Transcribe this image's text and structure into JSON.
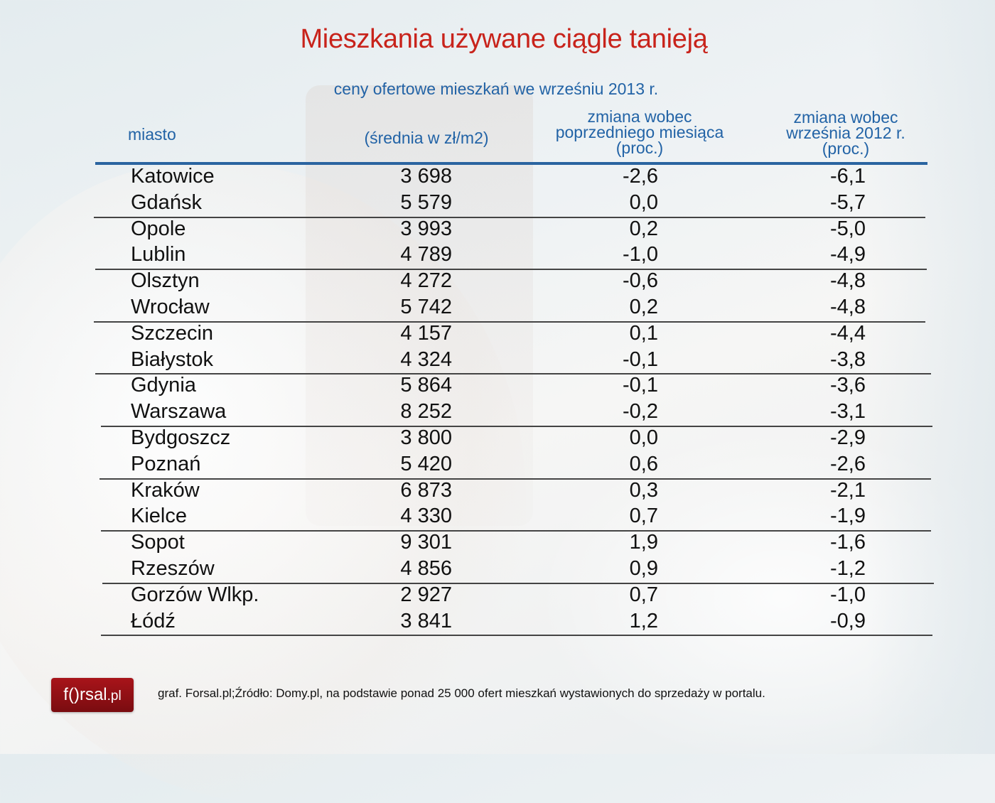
{
  "title": "Mieszkania używane ciągle tanieją",
  "subtitle": "ceny ofertowe mieszkań we wrześniu 2013 r.",
  "columns": {
    "city": "miasto",
    "price": "(średnia w zł/m2)",
    "mom": [
      "zmiana wobec",
      "poprzedniego miesiąca",
      "(proc.)"
    ],
    "yoy": [
      "zmiana wobec",
      "września 2012 r.",
      "(proc.)"
    ]
  },
  "rows": [
    {
      "city": "Katowice",
      "price": "3 698",
      "mom": "-2,6",
      "yoy": "-6,1"
    },
    {
      "city": "Gdańsk",
      "price": "5 579",
      "mom": "0,0",
      "yoy": "-5,7"
    },
    {
      "city": "Opole",
      "price": "3 993",
      "mom": "0,2",
      "yoy": "-5,0"
    },
    {
      "city": "Lublin",
      "price": "4 789",
      "mom": "-1,0",
      "yoy": "-4,9"
    },
    {
      "city": "Olsztyn",
      "price": "4 272",
      "mom": "-0,6",
      "yoy": "-4,8"
    },
    {
      "city": "Wrocław",
      "price": "5 742",
      "mom": "0,2",
      "yoy": "-4,8"
    },
    {
      "city": "Szczecin",
      "price": "4 157",
      "mom": "0,1",
      "yoy": "-4,4"
    },
    {
      "city": "Białystok",
      "price": "4 324",
      "mom": "-0,1",
      "yoy": "-3,8"
    },
    {
      "city": "Gdynia",
      "price": "5 864",
      "mom": "-0,1",
      "yoy": "-3,6"
    },
    {
      "city": "Warszawa",
      "price": "8 252",
      "mom": "-0,2",
      "yoy": "-3,1"
    },
    {
      "city": "Bydgoszcz",
      "price": "3 800",
      "mom": "0,0",
      "yoy": "-2,9"
    },
    {
      "city": "Poznań",
      "price": "5 420",
      "mom": "0,6",
      "yoy": "-2,6"
    },
    {
      "city": "Kraków",
      "price": "6 873",
      "mom": "0,3",
      "yoy": "-2,1"
    },
    {
      "city": "Kielce",
      "price": "4 330",
      "mom": "0,7",
      "yoy": "-1,9"
    },
    {
      "city": "Sopot",
      "price": "9 301",
      "mom": "1,9",
      "yoy": "-1,6"
    },
    {
      "city": "Rzeszów",
      "price": "4 856",
      "mom": "0,9",
      "yoy": "-1,2"
    },
    {
      "city": "Gorzów Wlkp.",
      "price": "2 927",
      "mom": "0,7",
      "yoy": "-1,0"
    },
    {
      "city": "Łódź",
      "price": "3 841",
      "mom": "1,2",
      "yoy": "-0,9"
    }
  ],
  "logo": {
    "name": "f()rsal",
    "tld": ".pl"
  },
  "source": "graf. Forsal.pl;Źródło: Domy.pl, na podstawie ponad 25 000 ofert mieszkań wystawionych do sprzedaży w portalu.",
  "colors": {
    "title": "#c8231b",
    "header": "#2263a6",
    "rule": "#2a64a0",
    "logo_bg": "#8f1016"
  },
  "chart_data": {
    "type": "table",
    "title": "Mieszkania używane ciągle tanieją",
    "subtitle": "ceny ofertowe mieszkań we wrześniu 2013 r.",
    "columns": [
      "miasto",
      "(średnia w zł/m2)",
      "zmiana wobec poprzedniego miesiąca (proc.)",
      "zmiana wobec września 2012 r. (proc.)"
    ],
    "categories": [
      "Katowice",
      "Gdańsk",
      "Opole",
      "Lublin",
      "Olsztyn",
      "Wrocław",
      "Szczecin",
      "Białystok",
      "Gdynia",
      "Warszawa",
      "Bydgoszcz",
      "Poznań",
      "Kraków",
      "Kielce",
      "Sopot",
      "Rzeszów",
      "Gorzów Wlkp.",
      "Łódź"
    ],
    "series": [
      {
        "name": "średnia w zł/m2",
        "values": [
          3698,
          5579,
          3993,
          4789,
          4272,
          5742,
          4157,
          4324,
          5864,
          8252,
          3800,
          5420,
          6873,
          4330,
          9301,
          4856,
          2927,
          3841
        ]
      },
      {
        "name": "zmiana wobec poprzedniego miesiąca (proc.)",
        "values": [
          -2.6,
          0.0,
          0.2,
          -1.0,
          -0.6,
          0.2,
          0.1,
          -0.1,
          -0.1,
          -0.2,
          0.0,
          0.6,
          0.3,
          0.7,
          1.9,
          0.9,
          0.7,
          1.2
        ]
      },
      {
        "name": "zmiana wobec września 2012 r. (proc.)",
        "values": [
          -6.1,
          -5.7,
          -5.0,
          -4.9,
          -4.8,
          -4.8,
          -4.4,
          -3.8,
          -3.6,
          -3.1,
          -2.9,
          -2.6,
          -2.1,
          -1.9,
          -1.6,
          -1.2,
          -1.0,
          -0.9
        ]
      }
    ],
    "source": "graf. Forsal.pl;Źródło: Domy.pl, na podstawie ponad 25 000 ofert mieszkań wystawionych do sprzedaży w portalu."
  }
}
